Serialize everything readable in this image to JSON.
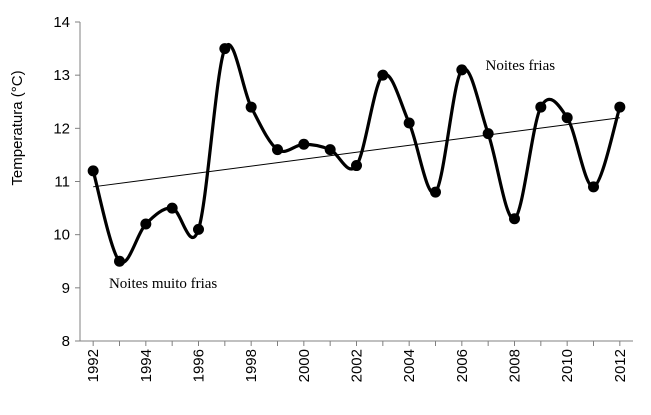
{
  "chart_data": {
    "type": "line",
    "title": "",
    "xlabel": "",
    "ylabel": "Temperatura (°C)",
    "xlim": [
      1991.5,
      2012.5
    ],
    "ylim": [
      8,
      14
    ],
    "yticks": [
      8,
      9,
      10,
      11,
      12,
      13,
      14
    ],
    "xticks": [
      1992,
      1994,
      1996,
      1998,
      2000,
      2002,
      2004,
      2006,
      2008,
      2010,
      2012
    ],
    "grid": false,
    "legend": "none",
    "series": [
      {
        "x": [
          1992,
          1993,
          1994,
          1995,
          1996,
          1997,
          1998,
          1999,
          2000,
          2001,
          2002,
          2003,
          2004,
          2005,
          2006,
          2007,
          2008,
          2009,
          2010,
          2011,
          2012
        ],
        "values": [
          11.2,
          9.5,
          10.2,
          10.5,
          10.1,
          13.5,
          12.4,
          11.6,
          11.7,
          11.6,
          11.3,
          13.0,
          12.1,
          10.8,
          13.1,
          11.9,
          10.3,
          12.4,
          12.2,
          10.9,
          12.4
        ],
        "color": "#000000",
        "smooth": true
      }
    ],
    "trendline": {
      "x": [
        1992,
        2012
      ],
      "values": [
        10.9,
        12.2
      ],
      "color": "#000000"
    },
    "annotations": [
      {
        "text": "Noites muito frias",
        "x": 1992.6,
        "y": 9.0
      },
      {
        "text": "Noites frias",
        "x": 2006.9,
        "y": 13.1
      }
    ]
  }
}
